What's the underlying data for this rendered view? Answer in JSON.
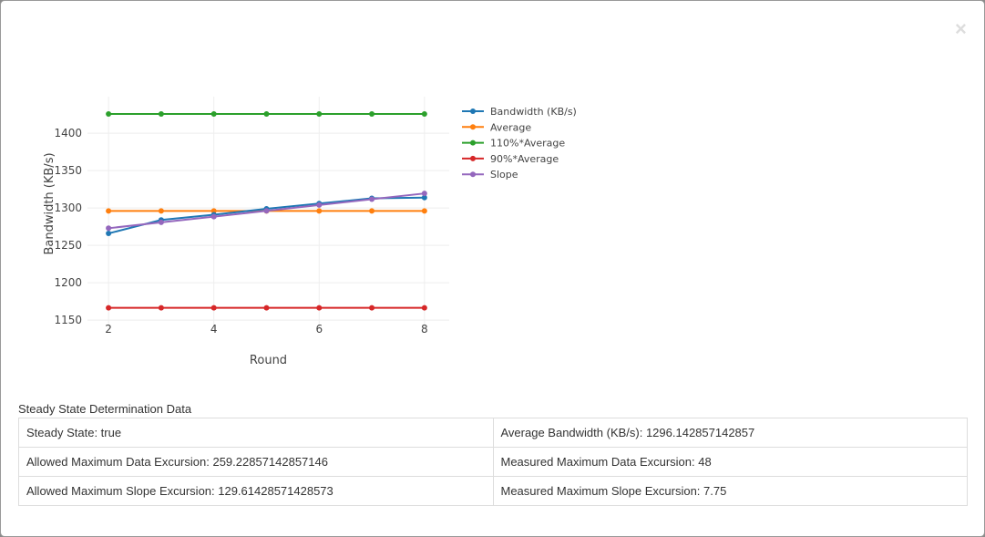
{
  "chart_data": {
    "type": "line",
    "xlabel": "Round",
    "ylabel": "Bandwidth (KB/s)",
    "x": [
      2,
      3,
      4,
      5,
      6,
      7,
      8
    ],
    "xticks": [
      2,
      4,
      6,
      8
    ],
    "yticks": [
      1150,
      1200,
      1250,
      1300,
      1350,
      1400
    ],
    "xlim": [
      1.6,
      8.47
    ],
    "ylim": [
      1138,
      1449
    ],
    "grid": true,
    "legend": "right",
    "series": [
      {
        "name": "Bandwidth (KB/s)",
        "color": "#1f77b4",
        "values": [
          1266,
          1284,
          1291,
          1299,
          1306,
          1313,
          1314
        ]
      },
      {
        "name": "Average",
        "color": "#ff7f0e",
        "values": [
          1296.14,
          1296.14,
          1296.14,
          1296.14,
          1296.14,
          1296.14,
          1296.14
        ]
      },
      {
        "name": "110%*Average",
        "color": "#2ca02c",
        "values": [
          1425.76,
          1425.76,
          1425.76,
          1425.76,
          1425.76,
          1425.76,
          1425.76
        ]
      },
      {
        "name": "90%*Average",
        "color": "#d62728",
        "values": [
          1166.53,
          1166.53,
          1166.53,
          1166.53,
          1166.53,
          1166.53,
          1166.53
        ]
      },
      {
        "name": "Slope",
        "color": "#9467bd",
        "values": [
          1273,
          1280.8,
          1288.5,
          1296.3,
          1304,
          1311.8,
          1319.5
        ]
      }
    ]
  },
  "close_icon": "×",
  "section_title": "Steady State Determination Data",
  "rows": [
    [
      "Steady State: true",
      "Average Bandwidth (KB/s): 1296.142857142857"
    ],
    [
      "Allowed Maximum Data Excursion: 259.22857142857146",
      "Measured Maximum Data Excursion: 48"
    ],
    [
      "Allowed Maximum Slope Excursion: 129.61428571428573",
      "Measured Maximum Slope Excursion: 7.75"
    ]
  ]
}
